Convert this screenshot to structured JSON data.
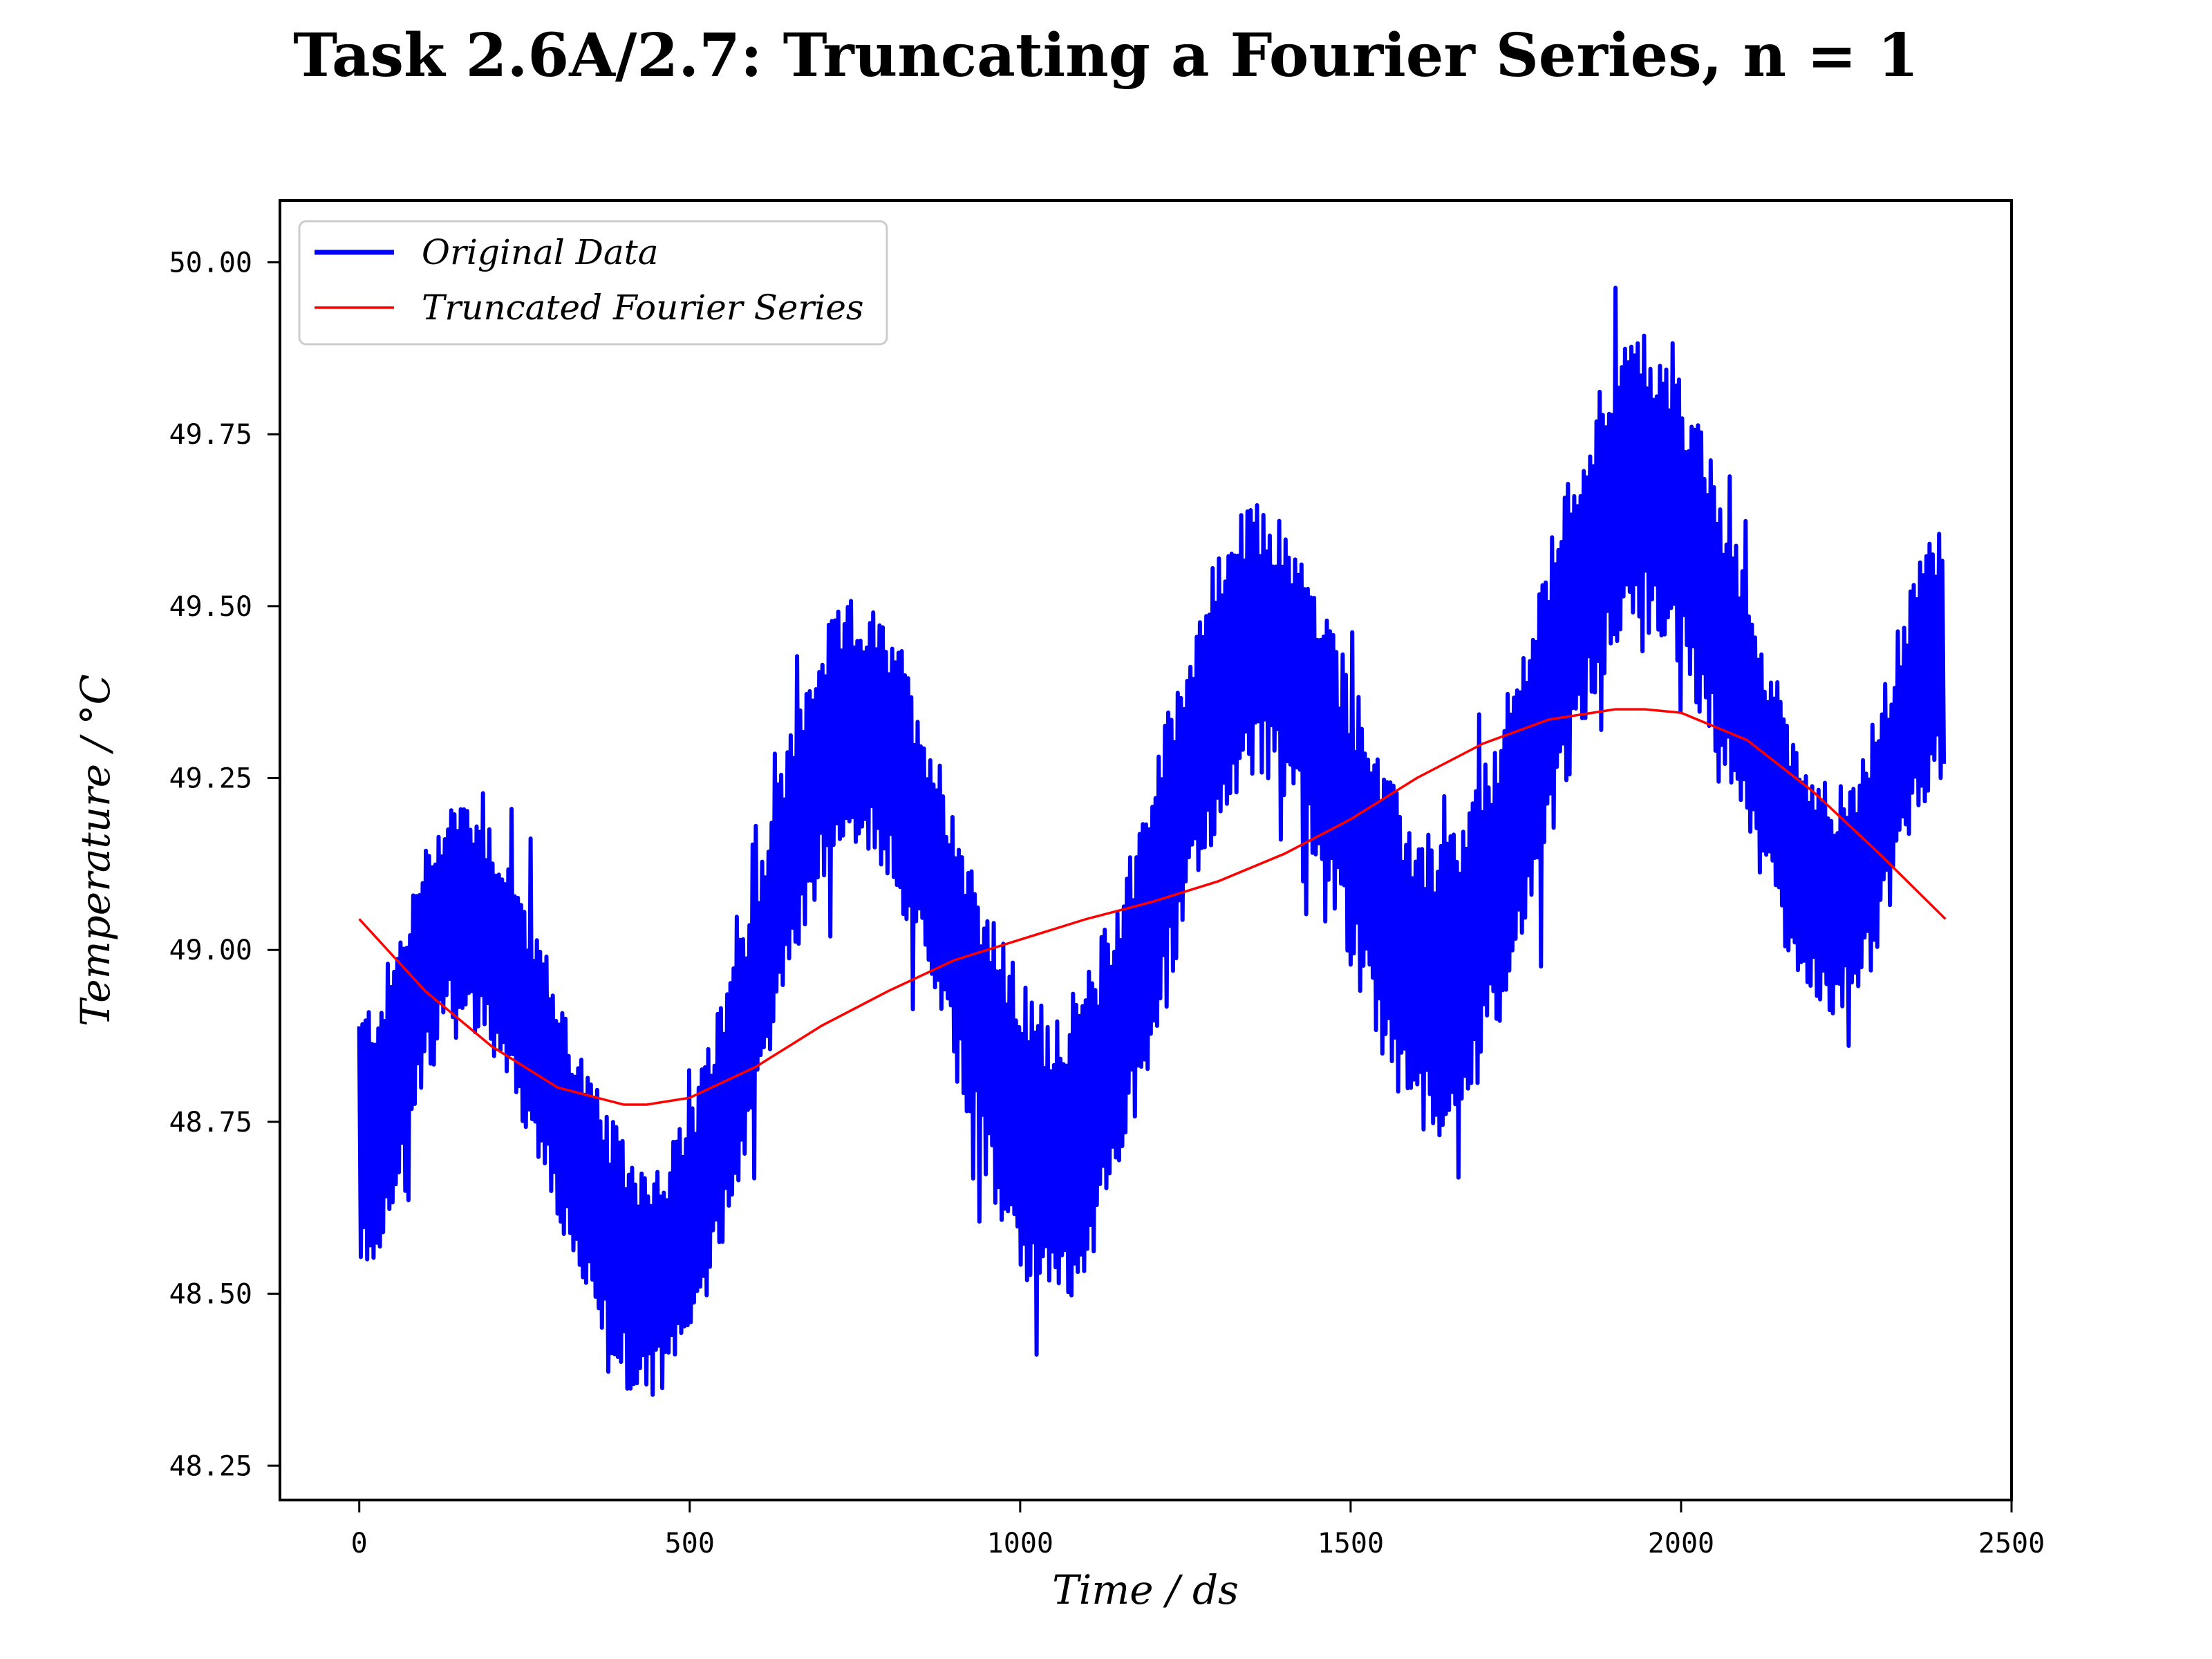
{
  "chart_data": {
    "type": "line",
    "title": "Task 2.6A/2.7: Truncating a Fourier Series, n = 1",
    "xlabel": "Time / ds",
    "ylabel": "Temperature / °C",
    "xlim": [
      -120,
      2500
    ],
    "ylim": [
      48.2,
      50.09
    ],
    "xticks": [
      0,
      500,
      1000,
      1500,
      2000,
      2500
    ],
    "xtick_labels": [
      "0",
      "500",
      "1000",
      "1500",
      "2000",
      "2500"
    ],
    "yticks": [
      48.25,
      48.5,
      48.75,
      49.0,
      49.25,
      49.5,
      49.75,
      50.0
    ],
    "ytick_labels": [
      "48.25",
      "48.50",
      "48.75",
      "49.00",
      "49.25",
      "49.50",
      "49.75",
      "50.00"
    ],
    "grid": false,
    "legend_position": "top-left",
    "series": [
      {
        "name": "Original Data",
        "color": "#0000ff",
        "style": "thick line, dense high-frequency oscillation",
        "envelope": {
          "x": [
            0,
            150,
            440,
            750,
            1050,
            1360,
            1630,
            1940,
            2240,
            2400
          ],
          "center": [
            48.72,
            49.06,
            48.52,
            49.33,
            48.7,
            49.45,
            48.95,
            49.68,
            49.07,
            49.43
          ],
          "half_width": [
            0.2,
            0.17,
            0.18,
            0.18,
            0.22,
            0.2,
            0.22,
            0.22,
            0.17,
            0.2
          ]
        }
      },
      {
        "name": "Truncated Fourier Series",
        "color": "#ff0000",
        "style": "thin line",
        "x": [
          0,
          100,
          200,
          300,
          400,
          435,
          500,
          600,
          700,
          800,
          900,
          1000,
          1100,
          1200,
          1300,
          1400,
          1500,
          1600,
          1700,
          1800,
          1900,
          1945,
          2000,
          2100,
          2200,
          2300,
          2400
        ],
        "values": [
          49.045,
          48.94,
          48.86,
          48.8,
          48.775,
          48.775,
          48.785,
          48.83,
          48.89,
          48.94,
          48.985,
          49.015,
          49.045,
          49.07,
          49.1,
          49.14,
          49.19,
          49.25,
          49.3,
          49.335,
          49.35,
          49.35,
          49.345,
          49.305,
          49.23,
          49.14,
          49.045
        ]
      }
    ]
  }
}
